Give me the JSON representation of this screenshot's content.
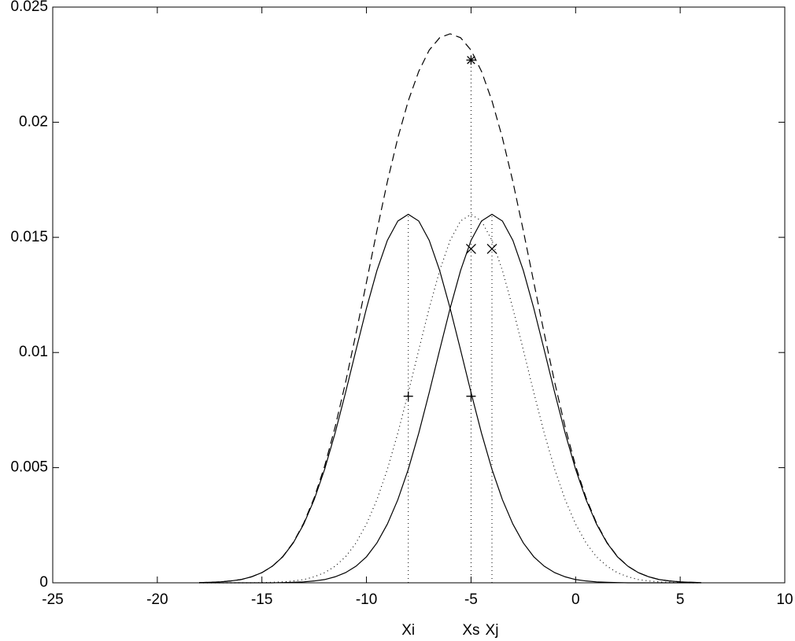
{
  "chart_data": {
    "type": "line",
    "x": [
      -18,
      -17.5,
      -17,
      -16.5,
      -16,
      -15.5,
      -15,
      -14.5,
      -14,
      -13.5,
      -13,
      -12.5,
      -12,
      -11.5,
      -11,
      -10.5,
      -10,
      -9.5,
      -9,
      -8.5,
      -8,
      -7.5,
      -7,
      -6.5,
      -6,
      -5.5,
      -5,
      -4.5,
      -4,
      -3.5,
      -3,
      -2.5,
      -2,
      -1.5,
      -1,
      -0.5,
      0,
      0.5,
      1,
      1.5,
      2,
      2.5,
      3,
      3.5,
      4,
      4.5,
      5,
      5.5,
      6
    ],
    "series": [
      {
        "color": "#000000",
        "dash": "solid",
        "values": [
          1e-05,
          2e-05,
          4e-05,
          8e-05,
          0.00014,
          0.00026,
          0.00044,
          0.00072,
          0.00113,
          0.00173,
          0.00255,
          0.00361,
          0.00493,
          0.0065,
          0.00826,
          0.01011,
          0.01192,
          0.01356,
          0.01487,
          0.01571,
          0.016,
          0.01571,
          0.01487,
          0.01356,
          0.01192,
          0.01011,
          0.00826,
          0.0065,
          0.00493,
          0.00361,
          0.00255,
          0.00173,
          0.00113,
          0.00072,
          0.00044,
          0.00026,
          0.00014,
          8e-05,
          4e-05,
          2e-05,
          1e-05,
          0,
          0,
          0,
          0,
          0,
          0,
          0,
          0
        ]
      },
      {
        "color": "#000000",
        "dash": "solid",
        "values": [
          0,
          0,
          0,
          0,
          0,
          0,
          0,
          0,
          1e-05,
          2e-05,
          4e-05,
          8e-05,
          0.00014,
          0.00026,
          0.00044,
          0.00072,
          0.00113,
          0.00173,
          0.00255,
          0.00361,
          0.00493,
          0.0065,
          0.00826,
          0.01011,
          0.01192,
          0.01356,
          0.01487,
          0.01571,
          0.016,
          0.01571,
          0.01487,
          0.01356,
          0.01192,
          0.01011,
          0.00826,
          0.0065,
          0.00493,
          0.00361,
          0.00255,
          0.00173,
          0.00113,
          0.00072,
          0.00044,
          0.00026,
          0.00014,
          8e-05,
          4e-05,
          2e-05,
          1e-05
        ]
      },
      {
        "color": "#000000",
        "dash": "dotted",
        "values": [
          0,
          0,
          0,
          0,
          0,
          0,
          1e-05,
          2e-05,
          4e-05,
          8e-05,
          0.00014,
          0.00026,
          0.00044,
          0.00072,
          0.00113,
          0.00173,
          0.00255,
          0.00361,
          0.00493,
          0.0065,
          0.00826,
          0.01011,
          0.01192,
          0.01356,
          0.01487,
          0.01571,
          0.016,
          0.01571,
          0.01487,
          0.01356,
          0.01192,
          0.01011,
          0.00826,
          0.0065,
          0.00493,
          0.00361,
          0.00255,
          0.00173,
          0.00113,
          0.00072,
          0.00044,
          0.00026,
          0.00014,
          8e-05,
          4e-05,
          2e-05,
          1e-05,
          0,
          0
        ]
      },
      {
        "color": "#000000",
        "dash": "dashed",
        "values": [
          1e-05,
          2e-05,
          4e-05,
          8e-05,
          0.00014,
          0.00026,
          0.00044,
          0.00072,
          0.00114,
          0.00175,
          0.00259,
          0.00369,
          0.00507,
          0.00676,
          0.0087,
          0.01083,
          0.01305,
          0.01529,
          0.01742,
          0.01932,
          0.02093,
          0.02221,
          0.02313,
          0.02367,
          0.02384,
          0.02367,
          0.02313,
          0.02221,
          0.02093,
          0.01932,
          0.01742,
          0.01529,
          0.01305,
          0.01083,
          0.0087,
          0.00676,
          0.00507,
          0.00369,
          0.00259,
          0.00175,
          0.00114,
          0.00072,
          0.00044,
          0.00026,
          0.00014,
          8e-05,
          4e-05,
          2e-05,
          1e-05
        ]
      }
    ],
    "vlines": [
      {
        "x": -8,
        "top": 0.016
      },
      {
        "x": -5,
        "top": 0.0227
      },
      {
        "x": -4,
        "top": 0.016
      }
    ],
    "markers": [
      {
        "symbol": "star",
        "x": -5,
        "y": 0.0227
      },
      {
        "symbol": "cross",
        "x": -5,
        "y": 0.0145
      },
      {
        "symbol": "cross",
        "x": -4,
        "y": 0.0145
      },
      {
        "symbol": "plus",
        "x": -8,
        "y": 0.0081
      },
      {
        "symbol": "plus",
        "x": -5,
        "y": 0.0081
      }
    ],
    "annotations": [
      {
        "text": "Xi",
        "x": -8
      },
      {
        "text": "Xs",
        "x": -5
      },
      {
        "text": "Xj",
        "x": -4
      }
    ],
    "xlim": [
      -25,
      10
    ],
    "xticks": [
      -25,
      -20,
      -15,
      -10,
      -5,
      0,
      5,
      10
    ],
    "ylim": [
      0,
      0.025
    ],
    "yticks": [
      0,
      0.005,
      0.01,
      0.015,
      0.02,
      0.025
    ],
    "grid": false
  }
}
